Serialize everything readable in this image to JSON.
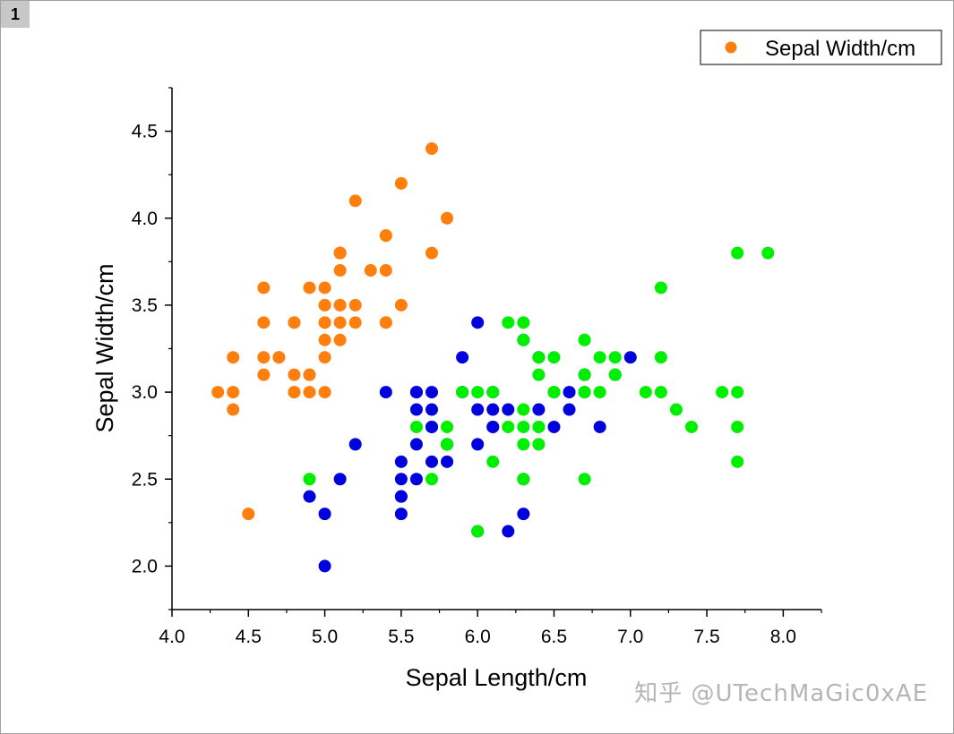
{
  "page_label": "1",
  "watermark": "知乎 @UTechMaGic0xAE",
  "chart_data": {
    "type": "scatter",
    "title": "",
    "xlabel": "Sepal Length/cm",
    "ylabel": "Sepal Width/cm",
    "xlim": [
      4.0,
      8.25
    ],
    "ylim": [
      1.75,
      4.75
    ],
    "x_ticks": [
      "4.0",
      "4.5",
      "5.0",
      "5.5",
      "6.0",
      "6.5",
      "7.0",
      "7.5",
      "8.0"
    ],
    "y_ticks": [
      "2.0",
      "2.5",
      "3.0",
      "3.5",
      "4.0",
      "4.5"
    ],
    "legend": {
      "position": "top-right",
      "label": "Sepal Width/cm"
    },
    "grid": false,
    "series": [
      {
        "color": "#ff7f0e",
        "points": [
          [
            5.1,
            3.5
          ],
          [
            4.9,
            3.0
          ],
          [
            4.7,
            3.2
          ],
          [
            4.6,
            3.1
          ],
          [
            5.0,
            3.6
          ],
          [
            5.4,
            3.9
          ],
          [
            4.6,
            3.4
          ],
          [
            5.0,
            3.4
          ],
          [
            4.4,
            2.9
          ],
          [
            4.9,
            3.1
          ],
          [
            5.4,
            3.7
          ],
          [
            4.8,
            3.4
          ],
          [
            4.8,
            3.0
          ],
          [
            4.3,
            3.0
          ],
          [
            5.8,
            4.0
          ],
          [
            5.7,
            4.4
          ],
          [
            5.4,
            3.9
          ],
          [
            5.1,
            3.5
          ],
          [
            5.7,
            3.8
          ],
          [
            5.1,
            3.8
          ],
          [
            5.4,
            3.4
          ],
          [
            5.1,
            3.7
          ],
          [
            4.6,
            3.6
          ],
          [
            5.1,
            3.3
          ],
          [
            4.8,
            3.4
          ],
          [
            5.0,
            3.0
          ],
          [
            5.0,
            3.4
          ],
          [
            5.2,
            3.5
          ],
          [
            5.2,
            3.4
          ],
          [
            4.7,
            3.2
          ],
          [
            4.8,
            3.1
          ],
          [
            5.4,
            3.4
          ],
          [
            5.2,
            4.1
          ],
          [
            5.5,
            4.2
          ],
          [
            4.9,
            3.1
          ],
          [
            5.0,
            3.2
          ],
          [
            5.5,
            3.5
          ],
          [
            4.9,
            3.6
          ],
          [
            4.4,
            3.0
          ],
          [
            5.1,
            3.4
          ],
          [
            5.0,
            3.5
          ],
          [
            4.5,
            2.3
          ],
          [
            4.4,
            3.2
          ],
          [
            5.0,
            3.5
          ],
          [
            5.1,
            3.8
          ],
          [
            4.8,
            3.0
          ],
          [
            5.1,
            3.8
          ],
          [
            4.6,
            3.2
          ],
          [
            5.3,
            3.7
          ],
          [
            5.0,
            3.3
          ]
        ]
      },
      {
        "color": "#0000dd",
        "points": [
          [
            7.0,
            3.2
          ],
          [
            6.4,
            3.2
          ],
          [
            6.9,
            3.1
          ],
          [
            5.5,
            2.3
          ],
          [
            6.5,
            2.8
          ],
          [
            5.7,
            2.8
          ],
          [
            6.3,
            3.3
          ],
          [
            4.9,
            2.4
          ],
          [
            6.6,
            2.9
          ],
          [
            5.2,
            2.7
          ],
          [
            5.0,
            2.0
          ],
          [
            5.9,
            3.0
          ],
          [
            6.0,
            2.2
          ],
          [
            6.1,
            2.9
          ],
          [
            5.6,
            2.9
          ],
          [
            6.7,
            3.1
          ],
          [
            5.6,
            3.0
          ],
          [
            5.8,
            2.7
          ],
          [
            6.2,
            2.2
          ],
          [
            5.6,
            2.5
          ],
          [
            5.9,
            3.2
          ],
          [
            6.1,
            2.8
          ],
          [
            6.3,
            2.5
          ],
          [
            6.1,
            2.8
          ],
          [
            6.4,
            2.9
          ],
          [
            6.6,
            3.0
          ],
          [
            6.8,
            2.8
          ],
          [
            6.7,
            3.0
          ],
          [
            6.0,
            2.9
          ],
          [
            5.7,
            2.6
          ],
          [
            5.5,
            2.4
          ],
          [
            5.5,
            2.4
          ],
          [
            5.8,
            2.7
          ],
          [
            6.0,
            2.7
          ],
          [
            5.4,
            3.0
          ],
          [
            6.0,
            3.4
          ],
          [
            6.7,
            3.1
          ],
          [
            6.3,
            2.3
          ],
          [
            5.6,
            3.0
          ],
          [
            5.5,
            2.5
          ],
          [
            5.5,
            2.6
          ],
          [
            6.1,
            3.0
          ],
          [
            5.8,
            2.6
          ],
          [
            5.0,
            2.3
          ],
          [
            5.6,
            2.7
          ],
          [
            5.7,
            3.0
          ],
          [
            5.7,
            2.9
          ],
          [
            6.2,
            2.9
          ],
          [
            5.1,
            2.5
          ],
          [
            5.7,
            2.8
          ]
        ]
      },
      {
        "color": "#00ee00",
        "points": [
          [
            6.3,
            3.3
          ],
          [
            5.8,
            2.7
          ],
          [
            7.1,
            3.0
          ],
          [
            6.3,
            2.9
          ],
          [
            6.5,
            3.0
          ],
          [
            7.6,
            3.0
          ],
          [
            4.9,
            2.5
          ],
          [
            7.3,
            2.9
          ],
          [
            6.7,
            2.5
          ],
          [
            7.2,
            3.6
          ],
          [
            6.5,
            3.2
          ],
          [
            6.4,
            2.7
          ],
          [
            6.8,
            3.0
          ],
          [
            5.7,
            2.5
          ],
          [
            5.8,
            2.8
          ],
          [
            6.4,
            3.2
          ],
          [
            6.5,
            3.0
          ],
          [
            7.7,
            3.8
          ],
          [
            7.7,
            2.6
          ],
          [
            6.0,
            2.2
          ],
          [
            6.9,
            3.2
          ],
          [
            5.6,
            2.8
          ],
          [
            7.7,
            2.8
          ],
          [
            6.3,
            2.7
          ],
          [
            6.7,
            3.3
          ],
          [
            7.2,
            3.2
          ],
          [
            6.2,
            2.8
          ],
          [
            6.1,
            3.0
          ],
          [
            6.4,
            2.8
          ],
          [
            7.2,
            3.0
          ],
          [
            7.4,
            2.8
          ],
          [
            7.9,
            3.8
          ],
          [
            6.4,
            2.8
          ],
          [
            6.3,
            2.8
          ],
          [
            6.1,
            2.6
          ],
          [
            7.7,
            3.0
          ],
          [
            6.3,
            3.4
          ],
          [
            6.4,
            3.1
          ],
          [
            6.0,
            3.0
          ],
          [
            6.9,
            3.1
          ],
          [
            6.7,
            3.1
          ],
          [
            6.9,
            3.1
          ],
          [
            5.8,
            2.7
          ],
          [
            6.8,
            3.2
          ],
          [
            6.7,
            3.3
          ],
          [
            6.7,
            3.0
          ],
          [
            6.3,
            2.5
          ],
          [
            6.5,
            3.0
          ],
          [
            6.2,
            3.4
          ],
          [
            5.9,
            3.0
          ]
        ]
      }
    ]
  }
}
